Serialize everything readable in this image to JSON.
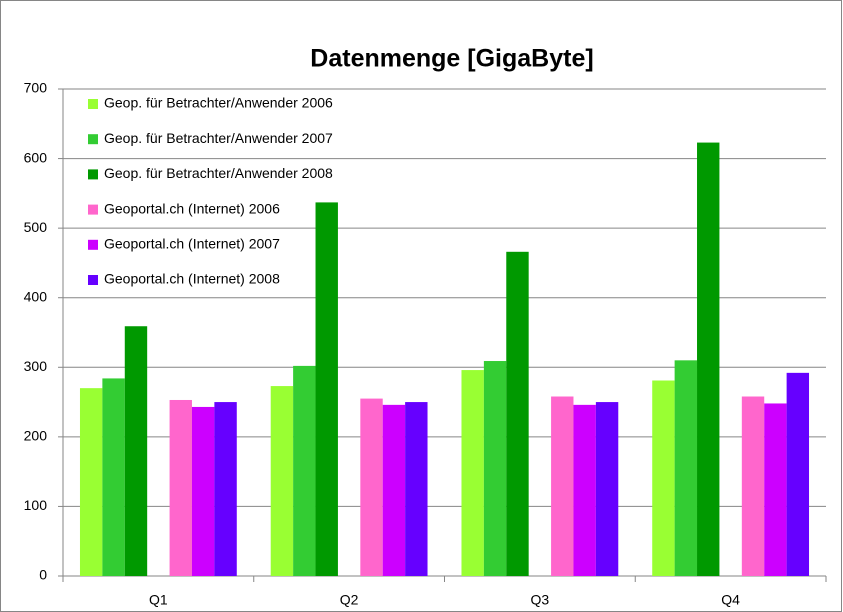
{
  "chart_data": {
    "type": "bar",
    "title": "Datenmenge [GigaByte]",
    "categories": [
      "Q1",
      "Q2",
      "Q3",
      "Q4"
    ],
    "series": [
      {
        "name": "Geop. für Betrachter/Anwender 2006",
        "color": "#99ff33",
        "values": [
          270,
          273,
          296,
          281
        ]
      },
      {
        "name": "Geop. für Betrachter/Anwender 2007",
        "color": "#33cc33",
        "values": [
          284,
          302,
          309,
          310
        ]
      },
      {
        "name": "Geop. für Betrachter/Anwender 2008",
        "color": "#009900",
        "values": [
          359,
          537,
          466,
          623
        ]
      },
      {
        "name": "Geoportal.ch (Internet) 2006",
        "color": "#ff66cc",
        "values": [
          253,
          255,
          258,
          258
        ]
      },
      {
        "name": "Geoportal.ch (Internet) 2007",
        "color": "#cc00ff",
        "values": [
          243,
          246,
          246,
          248
        ]
      },
      {
        "name": "Geoportal.ch (Internet) 2008",
        "color": "#6600ff",
        "values": [
          250,
          250,
          250,
          292
        ]
      }
    ],
    "ylim": [
      0,
      700
    ],
    "yticks": [
      0,
      100,
      200,
      300,
      400,
      500,
      600,
      700
    ],
    "grid": true,
    "legend": "top-left"
  }
}
